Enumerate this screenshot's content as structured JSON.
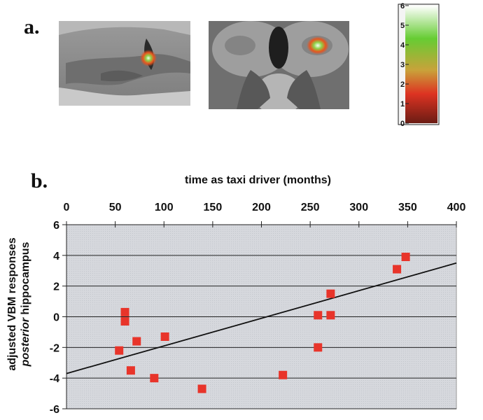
{
  "panel_a": {
    "label": "a.",
    "colorbar": {
      "ticks": [
        "6",
        "5",
        "4",
        "3",
        "2",
        "1",
        "0"
      ],
      "min": 0,
      "max": 6,
      "colors": [
        "#ffffff",
        "#66cc33",
        "#dd3322",
        "#6b1c14"
      ]
    }
  },
  "panel_b": {
    "label": "b."
  },
  "chart_data": {
    "type": "scatter",
    "title": "",
    "xlabel": "time as taxi driver (months)",
    "ylabel_line1": "adjusted VBM responses",
    "ylabel_line2_italic": "posterior",
    "ylabel_line2_rest": " hippocampus",
    "xlim": [
      0,
      400
    ],
    "ylim": [
      -6,
      6
    ],
    "xticks": [
      "0",
      "50",
      "100",
      "150",
      "200",
      "250",
      "300",
      "350",
      "400"
    ],
    "yticks": [
      "6",
      "4",
      "2",
      "0",
      "-2",
      "-4",
      "-6"
    ],
    "x_axis_position": "top",
    "grid": "horizontal",
    "marker_color": "#e8342a",
    "points": [
      {
        "x": 54,
        "y": -2.2
      },
      {
        "x": 60,
        "y": 0.3
      },
      {
        "x": 60,
        "y": -0.3
      },
      {
        "x": 66,
        "y": -3.5
      },
      {
        "x": 72,
        "y": -1.6
      },
      {
        "x": 90,
        "y": -4.0
      },
      {
        "x": 101,
        "y": -1.3
      },
      {
        "x": 139,
        "y": -4.7
      },
      {
        "x": 222,
        "y": -3.8
      },
      {
        "x": 258,
        "y": 0.1
      },
      {
        "x": 258,
        "y": -2.0
      },
      {
        "x": 271,
        "y": 1.5
      },
      {
        "x": 271,
        "y": 0.1
      },
      {
        "x": 339,
        "y": 3.1
      },
      {
        "x": 348,
        "y": 3.9
      }
    ],
    "trendline": {
      "x": [
        0,
        400
      ],
      "y": [
        -3.7,
        3.5
      ]
    }
  }
}
